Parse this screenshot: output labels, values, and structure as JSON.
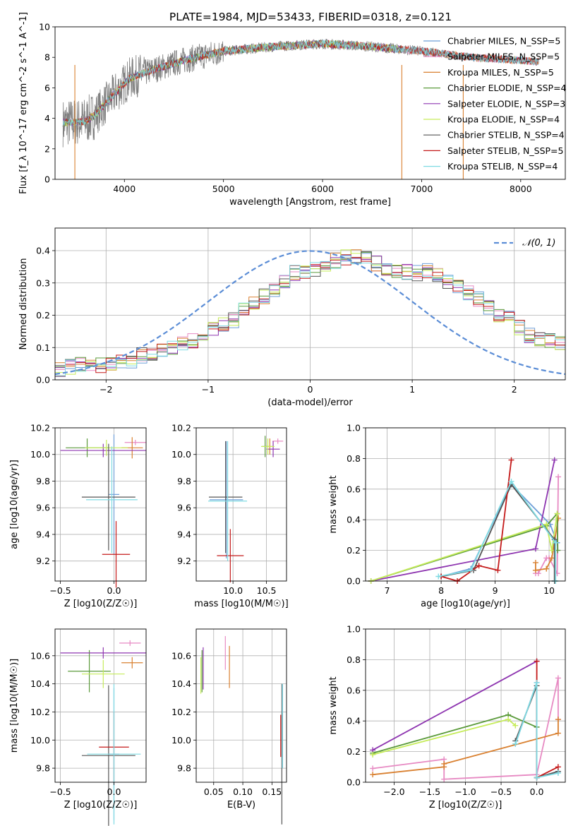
{
  "title": "PLATE=1984, MJD=53433, FIBERID=0318, z=0.121",
  "colors": {
    "chabrier_miles": "#6f9fd8",
    "salpeter_miles": "#e78ac3",
    "kroupa_miles": "#d98030",
    "chabrier_elodie": "#5a9a3a",
    "salpeter_elodie": "#8e35b0",
    "kroupa_elodie": "#c6ec5a",
    "chabrier_stelib": "#555555",
    "salpeter_stelib": "#c41a1a",
    "kroupa_stelib": "#7fdbe3",
    "data": "#7f7f7f",
    "normal": "#5b8dd6"
  },
  "legend_spectrum": [
    "Chabrier MILES, N_SSP=5",
    "Salpeter MILES, N_SSP=5",
    "Kroupa MILES, N_SSP=5",
    "Chabrier ELODIE, N_SSP=4",
    "Salpeter ELODIE, N_SSP=3",
    "Kroupa ELODIE, N_SSP=4",
    "Chabrier STELIB, N_SSP=4",
    "Salpeter STELIB, N_SSP=5",
    "Kroupa STELIB, N_SSP=4"
  ],
  "legend_hist": "𝒩(0, 1)",
  "chart_data": [
    {
      "type": "line",
      "name": "spectrum",
      "xlabel": "wavelength [Angstrom, rest frame]",
      "ylabel": "Flux [f_λ 10^-17 erg cm^-2 s^-1 A^-1]",
      "xlim": [
        3300,
        8450
      ],
      "ylim": [
        0,
        10
      ],
      "xticks": [
        4000,
        5000,
        6000,
        7000,
        8000
      ],
      "yticks": [
        0,
        2,
        4,
        6,
        8,
        10
      ],
      "grid": false,
      "legend_position": "right",
      "continuum": [
        [
          3380,
          3.7
        ],
        [
          3600,
          3.8
        ],
        [
          3700,
          4.2
        ],
        [
          3900,
          5.6
        ],
        [
          4050,
          6.6
        ],
        [
          4300,
          7.2
        ],
        [
          4600,
          7.8
        ],
        [
          5000,
          8.4
        ],
        [
          5500,
          8.7
        ],
        [
          6000,
          8.9
        ],
        [
          6500,
          8.7
        ],
        [
          7000,
          8.4
        ],
        [
          7500,
          8.0
        ],
        [
          8000,
          7.8
        ],
        [
          8180,
          7.7
        ]
      ]
    },
    {
      "type": "histogram",
      "name": "residuals",
      "xlabel": "(data-model)/error",
      "ylabel": "Normed distribution",
      "xlim": [
        -2.5,
        2.5
      ],
      "ylim": [
        0,
        0.47
      ],
      "xticks": [
        -2,
        -1,
        0,
        1,
        2
      ],
      "yticks": [
        0.0,
        0.1,
        0.2,
        0.3,
        0.4
      ],
      "grid": true,
      "legend_position": "top-right",
      "bin_edges_start": -2.5,
      "bin_width": 0.1,
      "base_heights": [
        0.035,
        0.04,
        0.05,
        0.05,
        0.045,
        0.05,
        0.055,
        0.06,
        0.075,
        0.08,
        0.09,
        0.1,
        0.11,
        0.12,
        0.14,
        0.16,
        0.175,
        0.185,
        0.22,
        0.24,
        0.26,
        0.28,
        0.31,
        0.33,
        0.335,
        0.34,
        0.36,
        0.37,
        0.38,
        0.38,
        0.38,
        0.36,
        0.345,
        0.34,
        0.335,
        0.33,
        0.34,
        0.32,
        0.3,
        0.29,
        0.27,
        0.25,
        0.22,
        0.2,
        0.19,
        0.16,
        0.14,
        0.13,
        0.12,
        0.11,
        0.1
      ],
      "normal_mean": 0,
      "normal_sigma": 1
    },
    {
      "type": "errorbar",
      "name": "age-vs-Z",
      "xlabel": "Z [log10(Z/Z☉)]",
      "ylabel": "age  [log10(age/yr)]",
      "xlim": [
        -0.55,
        0.3
      ],
      "ylim": [
        9.05,
        10.2
      ],
      "xticks": [
        -0.5,
        0.0
      ],
      "yticks": [
        9.2,
        9.4,
        9.6,
        9.8,
        10.0,
        10.2
      ],
      "grid": true,
      "points": [
        {
          "key": "chabrier_miles",
          "x": 0.0,
          "y": 9.7,
          "xerr": 0.05,
          "yerr": 0.45
        },
        {
          "key": "salpeter_miles",
          "x": 0.2,
          "y": 10.09,
          "xerr": 0.1,
          "yerr": 0.02
        },
        {
          "key": "kroupa_miles",
          "x": 0.17,
          "y": 10.05,
          "xerr": 0.1,
          "yerr": 0.08
        },
        {
          "key": "chabrier_elodie",
          "x": -0.25,
          "y": 10.05,
          "xerr": 0.2,
          "yerr": 0.07
        },
        {
          "key": "salpeter_elodie",
          "x": -0.1,
          "y": 10.03,
          "xerr": 0.4,
          "yerr": 0.05
        },
        {
          "key": "kroupa_elodie",
          "x": -0.07,
          "y": 10.05,
          "xerr": 0.2,
          "yerr": 0.06
        },
        {
          "key": "chabrier_stelib",
          "x": -0.05,
          "y": 9.68,
          "xerr": 0.25,
          "yerr": 0.4
        },
        {
          "key": "salpeter_stelib",
          "x": 0.02,
          "y": 9.25,
          "xerr": 0.13,
          "yerr": 0.25
        },
        {
          "key": "kroupa_stelib",
          "x": -0.02,
          "y": 9.66,
          "xerr": 0.24,
          "yerr": 0.4
        }
      ]
    },
    {
      "type": "errorbar",
      "name": "age-vs-mass",
      "xlabel": "mass [log10(M/M☉)]",
      "ylabel": "",
      "xlim": [
        9.45,
        10.8
      ],
      "ylim": [
        9.05,
        10.2
      ],
      "xticks": [
        10.0,
        10.5
      ],
      "yticks": [
        9.2,
        9.4,
        9.6,
        9.8,
        10.0,
        10.2
      ],
      "grid": true,
      "points": [
        {
          "key": "chabrier_miles",
          "x": 9.9,
          "y": 9.66,
          "xerr": 0.25,
          "yerr": 0.44
        },
        {
          "key": "salpeter_miles",
          "x": 10.67,
          "y": 10.1,
          "xerr": 0.08,
          "yerr": 0.02
        },
        {
          "key": "kroupa_miles",
          "x": 10.55,
          "y": 10.06,
          "xerr": 0.05,
          "yerr": 0.06
        },
        {
          "key": "chabrier_elodie",
          "x": 10.48,
          "y": 10.06,
          "xerr": 0.05,
          "yerr": 0.08
        },
        {
          "key": "salpeter_elodie",
          "x": 10.6,
          "y": 10.04,
          "xerr": 0.1,
          "yerr": 0.06
        },
        {
          "key": "kroupa_elodie",
          "x": 10.52,
          "y": 10.06,
          "xerr": 0.1,
          "yerr": 0.06
        },
        {
          "key": "chabrier_stelib",
          "x": 9.89,
          "y": 9.68,
          "xerr": 0.25,
          "yerr": 0.42
        },
        {
          "key": "salpeter_stelib",
          "x": 9.96,
          "y": 9.24,
          "xerr": 0.2,
          "yerr": 0.2
        },
        {
          "key": "kroupa_stelib",
          "x": 9.92,
          "y": 9.65,
          "xerr": 0.29,
          "yerr": 0.45
        }
      ]
    },
    {
      "type": "line",
      "name": "weight-vs-age",
      "xlabel": "age  [log10(age/yr)]",
      "ylabel": "mass weight",
      "xlim": [
        6.6,
        10.3
      ],
      "ylim": [
        0,
        1
      ],
      "xticks": [
        7,
        8,
        9,
        10
      ],
      "yticks": [
        0.0,
        0.2,
        0.4,
        0.6,
        0.8,
        1.0
      ],
      "grid": true,
      "series": [
        {
          "key": "chabrier_miles",
          "x": [
            8.0,
            8.55,
            9.3,
            10.02,
            10.15
          ],
          "y": [
            0.03,
            0.08,
            0.63,
            0.37,
            0.25
          ]
        },
        {
          "key": "salpeter_miles",
          "x": [
            9.75,
            9.8,
            9.95,
            10.0,
            10.15,
            10.17
          ],
          "y": [
            0.05,
            0.05,
            0.15,
            0.15,
            0.05,
            0.68
          ]
        },
        {
          "key": "kroupa_miles",
          "x": [
            9.75,
            9.75,
            9.95,
            10.05,
            10.17
          ],
          "y": [
            0.12,
            0.07,
            0.08,
            0.15,
            0.41
          ]
        },
        {
          "key": "chabrier_elodie",
          "x": [
            6.7,
            9.95,
            10.15,
            10.16
          ],
          "y": [
            0.0,
            0.36,
            0.44,
            0.2
          ]
        },
        {
          "key": "salpeter_elodie",
          "x": [
            6.7,
            9.75,
            10.1
          ],
          "y": [
            0.0,
            0.21,
            0.79
          ]
        },
        {
          "key": "kroupa_elodie",
          "x": [
            6.7,
            9.95,
            10.05,
            10.15
          ],
          "y": [
            0.0,
            0.37,
            0.2,
            0.44
          ]
        },
        {
          "key": "chabrier_stelib",
          "x": [
            8.0,
            8.6,
            9.3,
            10.1,
            10.1
          ],
          "y": [
            0.03,
            0.07,
            0.63,
            0.27,
            0.0
          ]
        },
        {
          "key": "salpeter_stelib",
          "x": [
            8.0,
            8.3,
            8.7,
            9.05,
            9.3
          ],
          "y": [
            0.03,
            0.0,
            0.1,
            0.07,
            0.79
          ]
        },
        {
          "key": "kroupa_stelib",
          "x": [
            7.95,
            8.55,
            9.3,
            10.12,
            10.12
          ],
          "y": [
            0.03,
            0.07,
            0.65,
            0.25,
            0.0
          ]
        }
      ]
    },
    {
      "type": "errorbar",
      "name": "mass-vs-Z",
      "xlabel": "Z [log10(Z/Z☉)]",
      "ylabel": "mass [log10(M/M☉)]",
      "xlim": [
        -0.55,
        0.3
      ],
      "ylim": [
        9.7,
        10.79
      ],
      "xticks": [
        -0.5,
        0.0
      ],
      "yticks": [
        9.8,
        10.0,
        10.2,
        10.4,
        10.6
      ],
      "grid": true,
      "points": [
        {
          "key": "chabrier_miles",
          "x": 0.0,
          "y": 9.9,
          "xerr": 0.05,
          "yerr": 0.47
        },
        {
          "key": "salpeter_miles",
          "x": 0.15,
          "y": 10.69,
          "xerr": 0.1,
          "yerr": 0.02
        },
        {
          "key": "kroupa_miles",
          "x": 0.17,
          "y": 10.55,
          "xerr": 0.1,
          "yerr": 0.04
        },
        {
          "key": "chabrier_elodie",
          "x": -0.23,
          "y": 10.49,
          "xerr": 0.2,
          "yerr": 0.15
        },
        {
          "key": "salpeter_elodie",
          "x": -0.1,
          "y": 10.62,
          "xerr": 0.4,
          "yerr": 0.04
        },
        {
          "key": "kroupa_elodie",
          "x": -0.1,
          "y": 10.47,
          "xerr": 0.2,
          "yerr": 0.1
        },
        {
          "key": "chabrier_stelib",
          "x": -0.05,
          "y": 9.89,
          "xerr": 0.25,
          "yerr": 0.5
        },
        {
          "key": "salpeter_stelib",
          "x": 0.0,
          "y": 9.95,
          "xerr": 0.14,
          "yerr": 0.25
        },
        {
          "key": "kroupa_stelib",
          "x": 0.0,
          "y": 9.9,
          "xerr": 0.25,
          "yerr": 0.5
        }
      ]
    },
    {
      "type": "errorbar",
      "name": "mass-vs-EBV",
      "xlabel": "E(B-V)",
      "ylabel": "",
      "xlim": [
        0.02,
        0.175
      ],
      "ylim": [
        9.7,
        10.79
      ],
      "xticks": [
        0.05,
        0.1,
        0.15
      ],
      "yticks": [
        9.8,
        10.0,
        10.2,
        10.4,
        10.6
      ],
      "grid": true,
      "points": [
        {
          "key": "chabrier_miles",
          "x": 0.168,
          "y": 10.1,
          "xerr": 0,
          "yerr": 0.3
        },
        {
          "key": "salpeter_miles",
          "x": 0.07,
          "y": 10.62,
          "xerr": 0,
          "yerr": 0.12
        },
        {
          "key": "kroupa_miles",
          "x": 0.077,
          "y": 10.52,
          "xerr": 0,
          "yerr": 0.15
        },
        {
          "key": "chabrier_elodie",
          "x": 0.03,
          "y": 10.49,
          "xerr": 0,
          "yerr": 0.15
        },
        {
          "key": "salpeter_elodie",
          "x": 0.032,
          "y": 10.51,
          "xerr": 0,
          "yerr": 0.15
        },
        {
          "key": "kroupa_elodie",
          "x": 0.028,
          "y": 10.46,
          "xerr": 0,
          "yerr": 0.13
        },
        {
          "key": "chabrier_stelib",
          "x": 0.167,
          "y": 9.9,
          "xerr": 0,
          "yerr": 0.5
        },
        {
          "key": "salpeter_stelib",
          "x": 0.165,
          "y": 10.03,
          "xerr": 0,
          "yerr": 0.15
        },
        {
          "key": "kroupa_stelib",
          "x": 0.168,
          "y": 10.1,
          "xerr": 0,
          "yerr": 0.3
        }
      ]
    },
    {
      "type": "line",
      "name": "weight-vs-Z",
      "xlabel": "Z [log10(Z/Z☉)]",
      "ylabel": "mass weight",
      "xlim": [
        -2.4,
        0.4
      ],
      "ylim": [
        0,
        1
      ],
      "xticks": [
        -2.0,
        -1.5,
        -1.0,
        -0.5,
        0.0
      ],
      "yticks": [
        0.0,
        0.2,
        0.4,
        0.6,
        0.8,
        1.0
      ],
      "grid": true,
      "series": [
        {
          "key": "chabrier_miles",
          "x": [
            -0.3,
            0.0,
            0.0,
            0.3
          ],
          "y": [
            0.25,
            0.65,
            0.03,
            0.07
          ]
        },
        {
          "key": "salpeter_miles",
          "x": [
            -2.3,
            -1.3,
            -1.3,
            0.0,
            0.3,
            0.3
          ],
          "y": [
            0.09,
            0.15,
            0.02,
            0.05,
            0.68,
            0.41
          ]
        },
        {
          "key": "kroupa_miles",
          "x": [
            -2.3,
            -1.3,
            -1.3,
            0.3,
            0.3
          ],
          "y": [
            0.05,
            0.1,
            0.12,
            0.32,
            0.41
          ]
        },
        {
          "key": "chabrier_elodie",
          "x": [
            -2.3,
            -0.4,
            0.0
          ],
          "y": [
            0.19,
            0.44,
            0.36
          ]
        },
        {
          "key": "salpeter_elodie",
          "x": [
            -2.3,
            0.0
          ],
          "y": [
            0.21,
            0.79
          ]
        },
        {
          "key": "kroupa_elodie",
          "x": [
            -2.3,
            -0.4,
            -0.3
          ],
          "y": [
            0.18,
            0.41,
            0.37
          ]
        },
        {
          "key": "chabrier_stelib",
          "x": [
            -0.3,
            0.0,
            0.0,
            0.3
          ],
          "y": [
            0.27,
            0.63,
            0.03,
            0.07
          ]
        },
        {
          "key": "salpeter_stelib",
          "x": [
            0.0,
            0.0,
            0.3
          ],
          "y": [
            0.79,
            0.03,
            0.1
          ]
        },
        {
          "key": "kroupa_stelib",
          "x": [
            -0.3,
            0.0,
            0.0,
            0.3
          ],
          "y": [
            0.25,
            0.65,
            0.03,
            0.06
          ]
        }
      ]
    }
  ]
}
